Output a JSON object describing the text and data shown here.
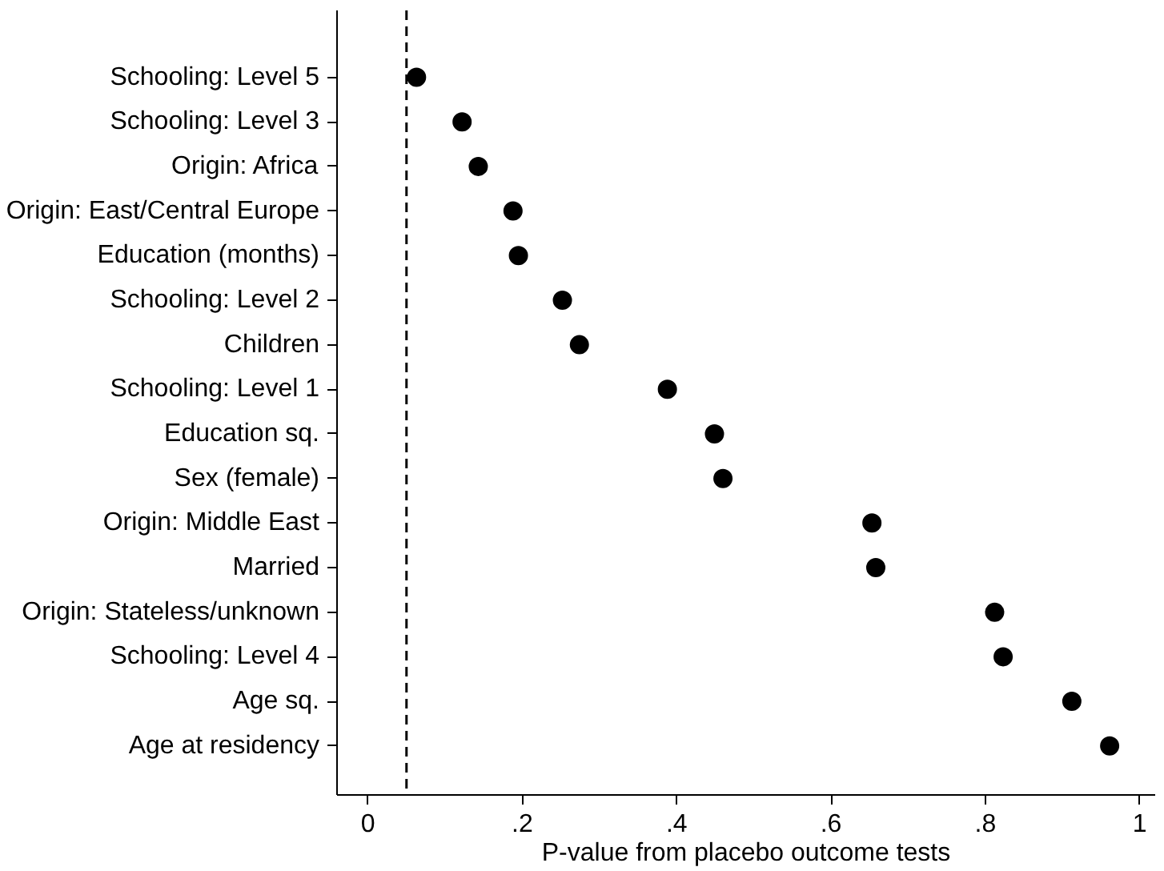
{
  "chart_data": {
    "type": "scatter",
    "orientation": "horizontal",
    "xlabel": "P-value from placebo outcome tests",
    "categories": [
      "Schooling: Level 5",
      "Schooling: Level 3",
      "Origin: Africa",
      "Origin: East/Central Europe",
      "Education (months)",
      "Schooling: Level 2",
      "Children",
      "Schooling: Level 1",
      "Education sq.",
      "Sex (female)",
      "Origin: Middle East",
      "Married",
      "Origin: Stateless/unknown",
      "Schooling: Level 4",
      "Age sq.",
      "Age at residency"
    ],
    "series": [
      {
        "color": "#000000",
        "values": [
          0.063,
          0.122,
          0.143,
          0.188,
          0.195,
          0.252,
          0.274,
          0.388,
          0.449,
          0.46,
          0.653,
          0.658,
          0.812,
          0.823,
          0.912,
          0.961
        ]
      }
    ],
    "xlim": [
      -0.04,
      1.02
    ],
    "xticks": [
      0,
      {
        "value": 0.2,
        "label": ".2"
      },
      {
        "value": 0.4,
        "label": ".4"
      },
      {
        "value": 0.6,
        "label": ".6"
      },
      {
        "value": 0.8,
        "label": ".8"
      },
      1
    ],
    "ref_lines": [
      {
        "axis": "x",
        "value": 0.05,
        "label": null,
        "color": "#000000",
        "line_style": "dashed"
      }
    ],
    "marker": "circle",
    "grid": false
  }
}
